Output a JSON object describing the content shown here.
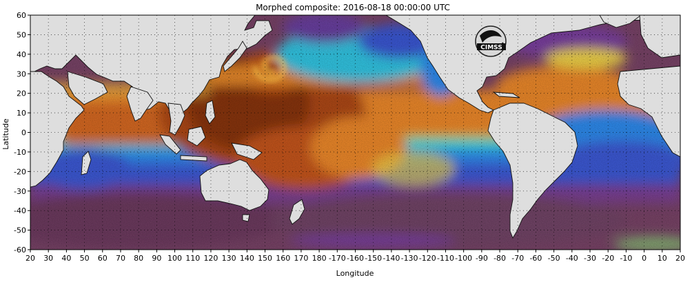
{
  "title": "Morphed composite: 2016-08-18 00:00:00 UTC",
  "xlabel": "Longitude",
  "ylabel": "Latitude",
  "x_ticks": [
    "20",
    "30",
    "40",
    "50",
    "60",
    "70",
    "80",
    "90",
    "100",
    "110",
    "120",
    "130",
    "140",
    "150",
    "160",
    "170",
    "180",
    "-170",
    "-160",
    "-150",
    "-140",
    "-130",
    "-120",
    "-110",
    "-100",
    "-90",
    "-80",
    "-70",
    "-60",
    "-50",
    "-40",
    "-30",
    "-20",
    "-10",
    "0",
    "10",
    "20"
  ],
  "y_ticks": [
    "60",
    "50",
    "40",
    "30",
    "20",
    "10",
    "0",
    "-10",
    "-20",
    "-30",
    "-40",
    "-50",
    "-60"
  ],
  "logo_text": "CIMSS",
  "map": {
    "lon_range": [
      20,
      380
    ],
    "lat_range": [
      -60,
      60
    ],
    "grid": "dotted, every 10 degrees",
    "colormap": [
      "#6a2f55",
      "#7b3fa0",
      "#3a4fd6",
      "#2f8cf0",
      "#33d6e8",
      "#8ef07a",
      "#f2d54a",
      "#f08a2a",
      "#c8561a",
      "#7a2a0a"
    ],
    "land_color": "#dedede",
    "boundaries_color": "#111111"
  }
}
